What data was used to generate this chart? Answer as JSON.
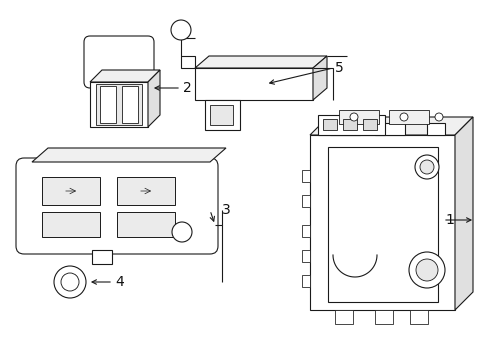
{
  "background_color": "#ffffff",
  "line_color": "#1a1a1a",
  "lw": 0.8,
  "font_size": 10,
  "figsize": [
    4.89,
    3.6
  ],
  "dpi": 100
}
